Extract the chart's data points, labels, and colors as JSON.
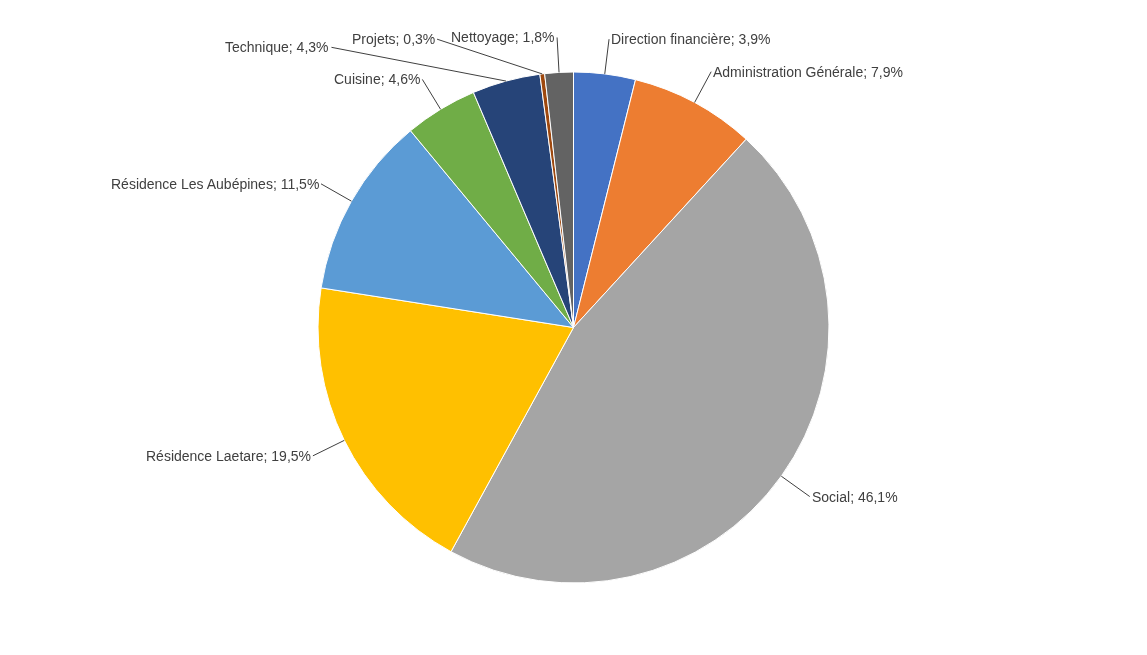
{
  "chart_data": {
    "type": "pie",
    "categories": [
      "Direction financière",
      "Administration Générale",
      "Social",
      "Résidence Laetare",
      "Résidence Les Aubépines",
      "Cuisine",
      "Technique",
      "Projets",
      "Nettoyage"
    ],
    "values": [
      3.9,
      7.9,
      46.1,
      19.5,
      11.5,
      4.6,
      4.3,
      0.3,
      1.8
    ],
    "value_labels": [
      "3,9%",
      "7,9%",
      "46,1%",
      "19,5%",
      "11,5%",
      "4,6%",
      "4,3%",
      "0,3%",
      "1,8%"
    ],
    "colors": [
      "#4472c4",
      "#ed7d31",
      "#a5a5a5",
      "#ffc000",
      "#5b9bd5",
      "#70ad47",
      "#264478",
      "#9e480e",
      "#636363"
    ],
    "legend": false
  }
}
